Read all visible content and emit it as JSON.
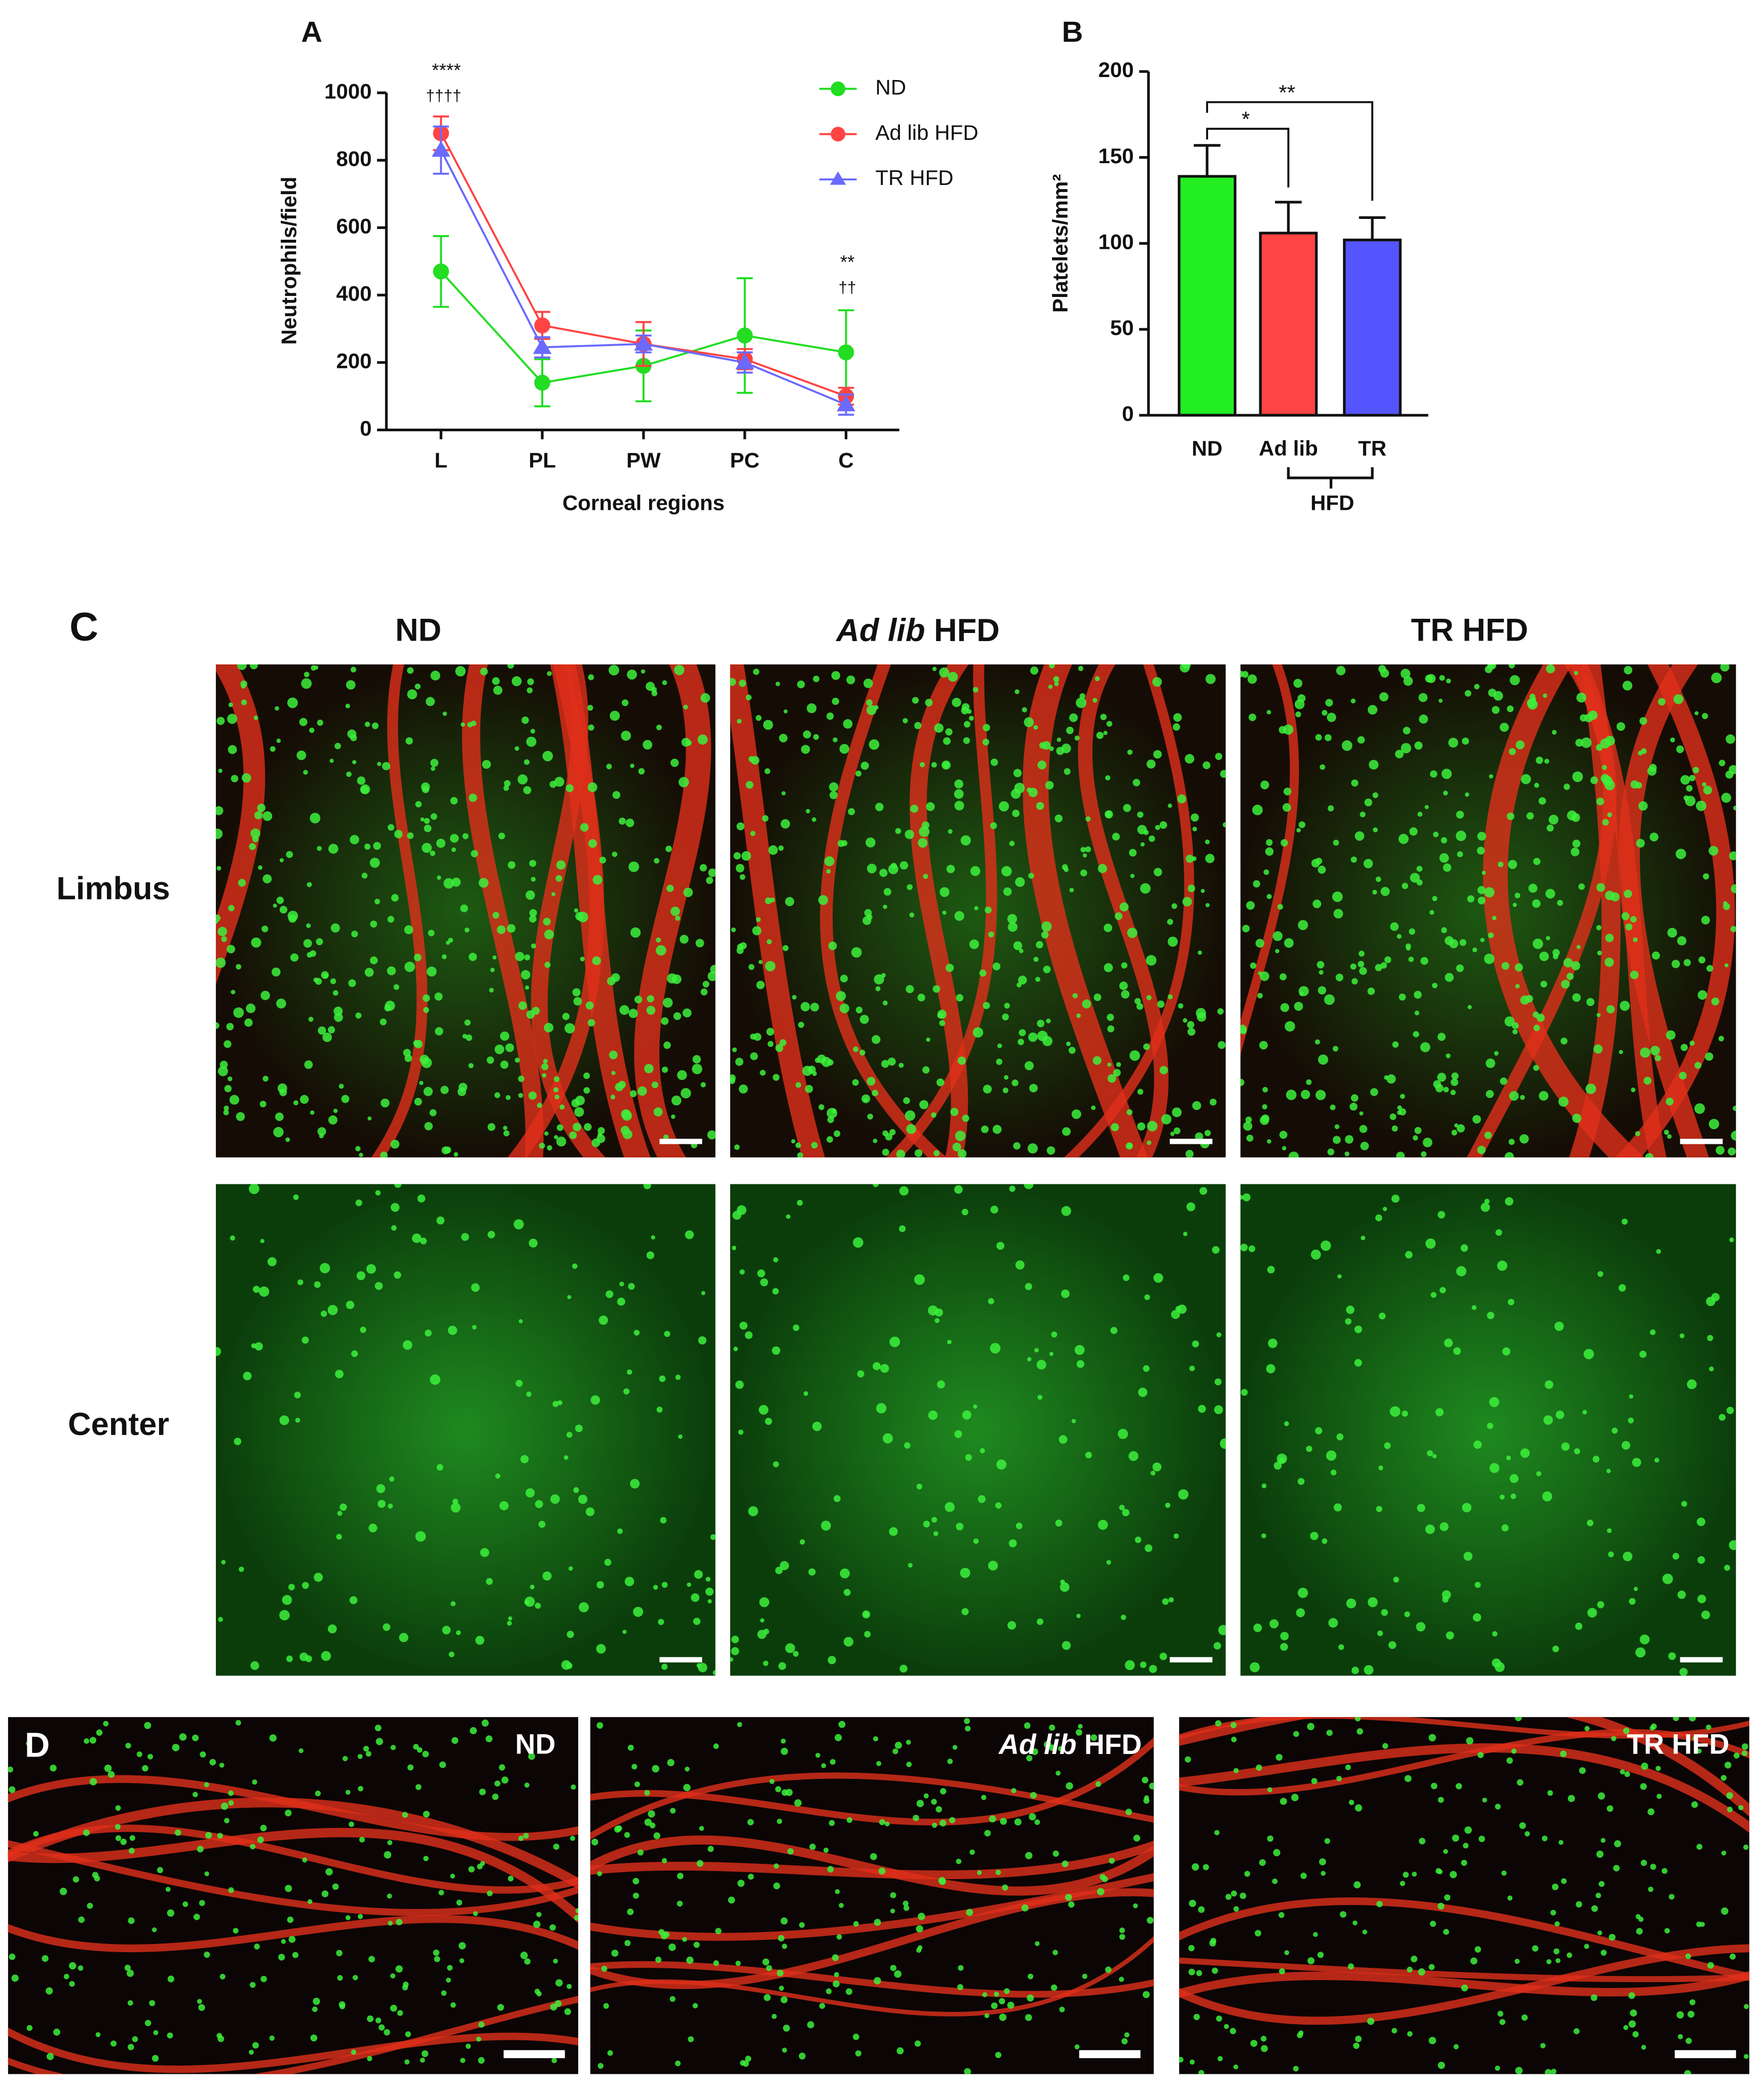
{
  "chart_data": [
    {
      "type": "line",
      "panel_label": "A",
      "x_label": "Corneal regions",
      "y_label": "Neutrophils/field",
      "categories": [
        "L",
        "PL",
        "PW",
        "PC",
        "C"
      ],
      "ylim": [
        0,
        1000
      ],
      "yticks": [
        0,
        200,
        400,
        600,
        800,
        1000
      ],
      "series": [
        {
          "name": "ND",
          "color": "#22dd22",
          "marker": "circle",
          "values": [
            470,
            140,
            190,
            280,
            230
          ],
          "errors": [
            105,
            70,
            105,
            170,
            125
          ]
        },
        {
          "name": "Ad lib HFD",
          "color": "#ff4444",
          "marker": "circle",
          "values": [
            880,
            310,
            255,
            210,
            100
          ],
          "errors": [
            50,
            40,
            65,
            30,
            25
          ]
        },
        {
          "name": "TR HFD",
          "color": "#6a6aff",
          "marker": "triangle",
          "values": [
            830,
            245,
            255,
            200,
            75
          ],
          "errors": [
            70,
            30,
            25,
            30,
            30
          ]
        }
      ],
      "annotations": [
        "****",
        "††††",
        "**",
        "††"
      ]
    },
    {
      "type": "bar",
      "panel_label": "B",
      "y_label": "Platelets/mm²",
      "categories": [
        "ND",
        "Ad lib",
        "TR"
      ],
      "group_label": "HFD",
      "values": [
        139,
        106,
        102
      ],
      "errors": [
        18,
        18,
        13
      ],
      "colors": [
        "#22ee22",
        "#ff4444",
        "#5555ff"
      ],
      "ylim": [
        0,
        200
      ],
      "yticks": [
        0,
        50,
        100,
        150,
        200
      ],
      "significance": [
        "*",
        "**"
      ]
    }
  ],
  "panel_c": {
    "label": "C",
    "columns": [
      "ND",
      {
        "italic": "Ad lib",
        "plain": "HFD"
      },
      "TR HFD"
    ],
    "rows": [
      "Limbus",
      "Center"
    ]
  },
  "panel_d": {
    "label": "D",
    "images": [
      "ND",
      {
        "italic": "Ad lib",
        "plain": "HFD"
      },
      "TR HFD"
    ]
  }
}
